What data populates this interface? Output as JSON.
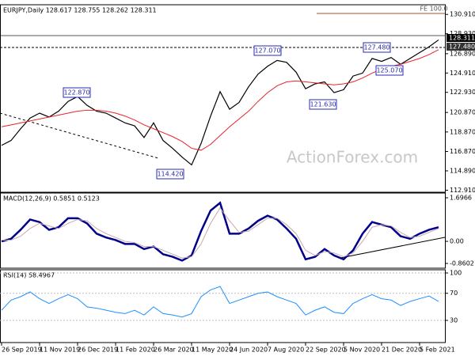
{
  "chart_data": [
    {
      "type": "line",
      "title": "EURJPY,Daily 128.617 128.755 128.262 128.311",
      "watermark": "ActionForex.com",
      "annotations": [
        "FE 100.0",
        "127.070",
        "127.480",
        "122.870",
        "121.630",
        "125.070",
        "114.420"
      ],
      "price_labels": [
        "128.311",
        "127.480"
      ],
      "categories": [
        "26 Sep 2019",
        null,
        null,
        null,
        "11 Nov 2019",
        null,
        null,
        null,
        "26 Dec 2019",
        null,
        null,
        null,
        "11 Feb 2020",
        null,
        null,
        null,
        "26 Mar 2020",
        null,
        null,
        null,
        "11 May 2020",
        null,
        null,
        null,
        "24 Jun 2020",
        null,
        null,
        null,
        "7 Aug 2020",
        null,
        null,
        null,
        "22 Sep 2020",
        null,
        null,
        null,
        "5 Nov 2020",
        null,
        null,
        null,
        "21 Dec 2020",
        null,
        null,
        null,
        "5 Feb 2021",
        null,
        null
      ],
      "series": [
        {
          "color": "#000000",
          "values": [
            117.5,
            118.0,
            119.2,
            120.3,
            120.8,
            120.4,
            121.0,
            122.0,
            122.5,
            121.6,
            121.0,
            120.8,
            120.3,
            119.8,
            119.5,
            118.3,
            119.8,
            118.0,
            117.2,
            116.3,
            115.5,
            117.7,
            120.5,
            123.0,
            121.2,
            121.9,
            123.5,
            124.8,
            125.6,
            126.2,
            126.0,
            125.0,
            123.3,
            123.8,
            124.0,
            122.9,
            123.2,
            124.6,
            124.9,
            126.4,
            126.1,
            126.5,
            125.8,
            126.4,
            127.0,
            127.6,
            128.3
          ]
        },
        {
          "color": "#e8232a",
          "values": [
            119.4,
            119.6,
            119.8,
            120.0,
            120.2,
            120.4,
            120.6,
            120.8,
            121.0,
            121.1,
            121.1,
            121.0,
            120.8,
            120.5,
            120.1,
            119.6,
            119.2,
            118.8,
            118.4,
            117.9,
            117.2,
            117.0,
            117.6,
            118.5,
            119.4,
            120.2,
            121.0,
            122.0,
            122.9,
            123.6,
            124.0,
            124.1,
            124.0,
            123.9,
            123.8,
            123.7,
            123.8,
            124.0,
            124.4,
            124.9,
            125.3,
            125.6,
            125.8,
            126.1,
            126.4,
            126.8,
            127.3
          ]
        }
      ],
      "ylim": [
        112.7,
        131.9
      ],
      "yticks": [
        {
          "value": 130.91,
          "label": "130.910"
        },
        {
          "value": 128.93,
          "label": "128.930"
        },
        {
          "value": 126.89,
          "label": "126.890"
        },
        {
          "value": 124.91,
          "label": "124.910"
        },
        {
          "value": 122.93,
          "label": "122.930"
        },
        {
          "value": 120.87,
          "label": "120.870"
        },
        {
          "value": 118.87,
          "label": "118.870"
        },
        {
          "value": 116.87,
          "label": "116.870"
        },
        {
          "value": 114.89,
          "label": "114.890"
        },
        {
          "value": 112.91,
          "label": "112.910"
        }
      ]
    },
    {
      "type": "line",
      "title": "MACD(12,26,9) 0.5851 0.5123",
      "series": [
        {
          "color": "#00008b",
          "values": [
            0.0,
            0.1,
            0.45,
            0.85,
            0.75,
            0.45,
            0.55,
            0.9,
            0.9,
            0.7,
            0.3,
            0.15,
            0.05,
            -0.1,
            -0.1,
            -0.3,
            -0.2,
            -0.5,
            -0.6,
            -0.75,
            -0.55,
            0.4,
            1.2,
            1.5,
            0.3,
            0.3,
            0.5,
            0.8,
            1.0,
            0.85,
            0.5,
            0.1,
            -0.7,
            -0.6,
            -0.3,
            -0.55,
            -0.7,
            -0.35,
            0.3,
            0.75,
            0.65,
            0.55,
            0.2,
            0.1,
            0.3,
            0.45,
            0.55
          ]
        },
        {
          "color": "#c8a8b0",
          "values": [
            0.05,
            0.05,
            0.2,
            0.5,
            0.7,
            0.6,
            0.5,
            0.7,
            0.85,
            0.8,
            0.5,
            0.3,
            0.15,
            0.0,
            -0.05,
            -0.2,
            -0.2,
            -0.35,
            -0.5,
            -0.65,
            -0.6,
            -0.1,
            0.7,
            1.3,
            0.8,
            0.35,
            0.4,
            0.65,
            0.9,
            0.9,
            0.65,
            0.3,
            -0.35,
            -0.55,
            -0.4,
            -0.45,
            -0.6,
            -0.45,
            0.0,
            0.55,
            0.65,
            0.6,
            0.35,
            0.15,
            0.2,
            0.35,
            0.5
          ]
        }
      ],
      "ylim": [
        -1.045,
        1.881
      ],
      "yticks": [
        1.6966,
        {
          "value": 0,
          "label": "0.00"
        },
        -0.8602
      ]
    },
    {
      "type": "line",
      "title": "RSI(14) 58.4967",
      "series": [
        {
          "color": "#1e90ff",
          "values": [
            45,
            60,
            65,
            72,
            62,
            55,
            62,
            68,
            62,
            50,
            48,
            45,
            42,
            40,
            45,
            38,
            50,
            40,
            38,
            35,
            40,
            65,
            75,
            80,
            55,
            60,
            65,
            70,
            72,
            65,
            60,
            55,
            38,
            45,
            50,
            42,
            40,
            55,
            62,
            68,
            62,
            60,
            52,
            58,
            62,
            66,
            58
          ]
        }
      ],
      "ylim": [
        -2.7,
        104.7
      ],
      "yticks": [
        100,
        70,
        30
      ]
    }
  ]
}
